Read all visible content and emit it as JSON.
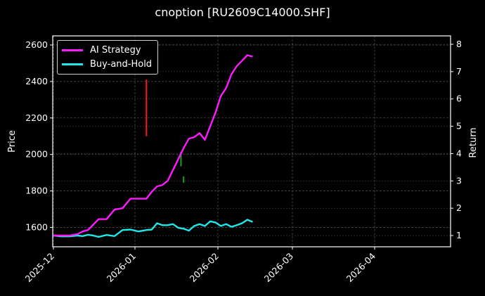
{
  "chart_data": {
    "type": "line",
    "title": "cnoption [RU2609C14000.SHF]",
    "xlabel": "",
    "ylabel": "Price",
    "ylabel_right": "Return",
    "x_ticks": [
      "2025-12",
      "2026-01",
      "2026-02",
      "2026-03",
      "2026-04"
    ],
    "y_ticks_left": [
      1600,
      1800,
      2000,
      2200,
      2400,
      2600
    ],
    "y_ticks_right": [
      1,
      2,
      3,
      4,
      5,
      6,
      7,
      8
    ],
    "ylim_left": [
      1550,
      2650
    ],
    "ylim_right": [
      0.6,
      8.3
    ],
    "grid": true,
    "legend_position": "upper left",
    "series": [
      {
        "name": "AI Strategy",
        "axis": "right",
        "color": "#ff1aff",
        "x": [
          "2025-12-01",
          "2025-12-04",
          "2025-12-07",
          "2025-12-10",
          "2025-12-12",
          "2025-12-14",
          "2025-12-16",
          "2025-12-18",
          "2025-12-21",
          "2025-12-24",
          "2025-12-27",
          "2025-12-30",
          "2026-01-02",
          "2026-01-05",
          "2026-01-07",
          "2026-01-09",
          "2026-01-11",
          "2026-01-13",
          "2026-01-15",
          "2026-01-17",
          "2026-01-19",
          "2026-01-21",
          "2026-01-23",
          "2026-01-25",
          "2026-01-27",
          "2026-01-29",
          "2026-01-31",
          "2026-02-02",
          "2026-02-04",
          "2026-02-06",
          "2026-02-08",
          "2026-02-10",
          "2026-02-12",
          "2026-02-14"
        ],
        "values": [
          1.0,
          1.0,
          1.0,
          1.05,
          1.15,
          1.2,
          1.4,
          1.6,
          1.6,
          1.95,
          2.0,
          2.35,
          2.35,
          2.35,
          2.6,
          2.8,
          2.85,
          3.0,
          3.4,
          3.8,
          4.2,
          4.55,
          4.6,
          4.75,
          4.5,
          5.0,
          5.5,
          6.1,
          6.4,
          6.9,
          7.2,
          7.4,
          7.6,
          7.55
        ]
      },
      {
        "name": "Buy-and-Hold",
        "axis": "right",
        "color": "#1de9e9",
        "x": [
          "2025-12-01",
          "2025-12-04",
          "2025-12-07",
          "2025-12-10",
          "2025-12-12",
          "2025-12-14",
          "2025-12-16",
          "2025-12-18",
          "2025-12-21",
          "2025-12-24",
          "2025-12-27",
          "2025-12-30",
          "2026-01-02",
          "2026-01-05",
          "2026-01-07",
          "2026-01-09",
          "2026-01-11",
          "2026-01-13",
          "2026-01-15",
          "2026-01-17",
          "2026-01-19",
          "2026-01-21",
          "2026-01-23",
          "2026-01-25",
          "2026-01-27",
          "2026-01-29",
          "2026-01-31",
          "2026-02-02",
          "2026-02-04",
          "2026-02-06",
          "2026-02-08",
          "2026-02-10",
          "2026-02-12",
          "2026-02-14"
        ],
        "values": [
          1.0,
          0.97,
          0.97,
          1.0,
          0.98,
          1.03,
          1.0,
          0.95,
          1.02,
          0.98,
          1.2,
          1.22,
          1.15,
          1.2,
          1.22,
          1.45,
          1.38,
          1.38,
          1.42,
          1.28,
          1.25,
          1.18,
          1.35,
          1.42,
          1.35,
          1.52,
          1.48,
          1.35,
          1.42,
          1.32,
          1.38,
          1.45,
          1.58,
          1.5
        ]
      }
    ],
    "markers": [
      {
        "type": "vertical-bar",
        "color": "#ff1a1a",
        "date": "2026-01-05",
        "price_from": 2100,
        "price_to": 2410
      },
      {
        "type": "vertical-bar",
        "color": "#1ea01e",
        "date": "2026-01-18",
        "price_from": 1935,
        "price_to": 2015
      },
      {
        "type": "vertical-bar",
        "color": "#1ea01e",
        "date": "2026-01-19",
        "price_from": 1845,
        "price_to": 1880
      }
    ]
  }
}
